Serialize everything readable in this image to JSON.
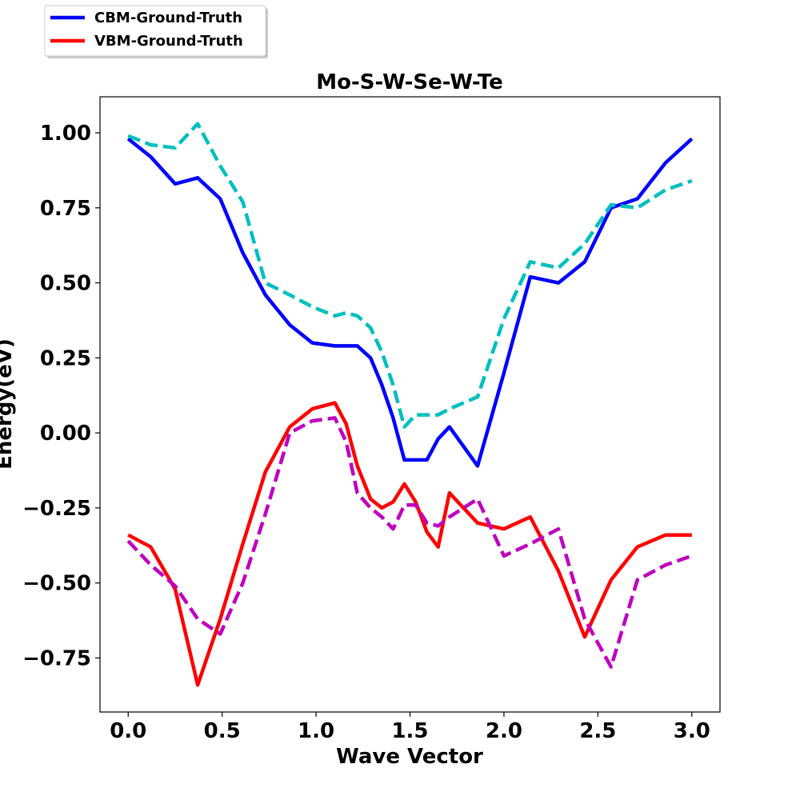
{
  "chart_data": {
    "type": "line",
    "title": "Mo-S-W-Se-W-Te",
    "xlabel": "Wave Vector",
    "ylabel": "Energy(eV)",
    "xlim": [
      -0.15,
      3.15
    ],
    "ylim": [
      -0.93,
      1.12
    ],
    "grid": false,
    "legend_position": "top-left-outside",
    "x_ticks": [
      {
        "value": 0.0,
        "label": "0.0"
      },
      {
        "value": 0.5,
        "label": "0.5"
      },
      {
        "value": 1.0,
        "label": "1.0"
      },
      {
        "value": 1.5,
        "label": "1.5"
      },
      {
        "value": 2.0,
        "label": "2.0"
      },
      {
        "value": 2.5,
        "label": "2.5"
      },
      {
        "value": 3.0,
        "label": "3.0"
      }
    ],
    "y_ticks": [
      {
        "value": 1.0,
        "label": "1.00"
      },
      {
        "value": 0.75,
        "label": "0.75"
      },
      {
        "value": 0.5,
        "label": "0.50"
      },
      {
        "value": 0.25,
        "label": "0.25"
      },
      {
        "value": 0.0,
        "label": "0.00"
      },
      {
        "value": -0.25,
        "label": "−0.25"
      },
      {
        "value": -0.5,
        "label": "−0.50"
      },
      {
        "value": -0.75,
        "label": "−0.75"
      }
    ],
    "series": [
      {
        "key": "cbm_gt",
        "name": "CBM-Ground-Truth",
        "color": "#0000ff",
        "style": "solid",
        "in_legend": true,
        "x": [
          0.0,
          0.12,
          0.25,
          0.37,
          0.49,
          0.61,
          0.73,
          0.86,
          0.98,
          1.1,
          1.16,
          1.22,
          1.29,
          1.35,
          1.41,
          1.47,
          1.53,
          1.59,
          1.65,
          1.71,
          1.86,
          2.0,
          2.14,
          2.29,
          2.43,
          2.57,
          2.71,
          2.86,
          3.0
        ],
        "y": [
          0.98,
          0.92,
          0.83,
          0.85,
          0.78,
          0.6,
          0.46,
          0.36,
          0.3,
          0.29,
          0.29,
          0.29,
          0.25,
          0.16,
          0.05,
          -0.09,
          -0.09,
          -0.09,
          -0.02,
          0.02,
          -0.11,
          0.2,
          0.52,
          0.5,
          0.57,
          0.75,
          0.78,
          0.9,
          0.98
        ]
      },
      {
        "key": "vbm_gt",
        "name": "VBM-Ground-Truth",
        "color": "#ff0000",
        "style": "solid",
        "in_legend": true,
        "x": [
          0.0,
          0.12,
          0.25,
          0.37,
          0.49,
          0.61,
          0.73,
          0.86,
          0.98,
          1.1,
          1.16,
          1.22,
          1.29,
          1.35,
          1.41,
          1.47,
          1.53,
          1.59,
          1.65,
          1.71,
          1.86,
          2.0,
          2.14,
          2.29,
          2.43,
          2.57,
          2.71,
          2.86,
          3.0
        ],
        "y": [
          -0.34,
          -0.38,
          -0.52,
          -0.84,
          -0.62,
          -0.37,
          -0.13,
          0.02,
          0.08,
          0.1,
          0.03,
          -0.11,
          -0.22,
          -0.25,
          -0.23,
          -0.17,
          -0.23,
          -0.33,
          -0.38,
          -0.2,
          -0.3,
          -0.32,
          -0.28,
          -0.46,
          -0.68,
          -0.49,
          -0.38,
          -0.34,
          -0.34
        ]
      },
      {
        "key": "cbm_pred",
        "color": "#00bfbf",
        "style": "dashed",
        "in_legend": false,
        "x": [
          0.0,
          0.12,
          0.25,
          0.37,
          0.49,
          0.61,
          0.73,
          0.86,
          0.98,
          1.1,
          1.16,
          1.22,
          1.29,
          1.35,
          1.41,
          1.47,
          1.53,
          1.59,
          1.65,
          1.71,
          1.86,
          2.0,
          2.14,
          2.29,
          2.43,
          2.57,
          2.71,
          2.86,
          3.0
        ],
        "y": [
          0.99,
          0.96,
          0.95,
          1.03,
          0.89,
          0.77,
          0.5,
          0.46,
          0.42,
          0.39,
          0.4,
          0.39,
          0.35,
          0.27,
          0.16,
          0.02,
          0.06,
          0.06,
          0.06,
          0.08,
          0.12,
          0.38,
          0.57,
          0.55,
          0.63,
          0.76,
          0.75,
          0.81,
          0.84
        ]
      },
      {
        "key": "vbm_pred",
        "color": "#bf00bf",
        "style": "dashed",
        "in_legend": false,
        "x": [
          0.0,
          0.12,
          0.25,
          0.37,
          0.49,
          0.61,
          0.73,
          0.86,
          0.98,
          1.1,
          1.16,
          1.22,
          1.29,
          1.35,
          1.41,
          1.47,
          1.53,
          1.59,
          1.65,
          1.71,
          1.86,
          2.0,
          2.14,
          2.29,
          2.43,
          2.57,
          2.71,
          2.86,
          3.0
        ],
        "y": [
          -0.36,
          -0.44,
          -0.51,
          -0.62,
          -0.67,
          -0.5,
          -0.27,
          0.0,
          0.04,
          0.05,
          -0.03,
          -0.2,
          -0.25,
          -0.28,
          -0.32,
          -0.24,
          -0.24,
          -0.3,
          -0.31,
          -0.28,
          -0.22,
          -0.41,
          -0.37,
          -0.32,
          -0.62,
          -0.78,
          -0.49,
          -0.44,
          -0.41
        ]
      }
    ]
  }
}
